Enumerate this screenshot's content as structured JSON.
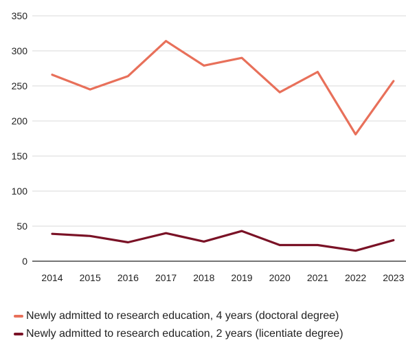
{
  "chart_data": {
    "type": "line",
    "title": "",
    "xlabel": "",
    "ylabel": "",
    "x": [
      "2014",
      "2015",
      "2016",
      "2017",
      "2018",
      "2019",
      "2020",
      "2021",
      "2022",
      "2023"
    ],
    "y_ticks": [
      "0",
      "50",
      "100",
      "150",
      "200",
      "250",
      "300",
      "350"
    ],
    "ylim": [
      0,
      350
    ],
    "grid": true,
    "legend_position": "bottom",
    "series": [
      {
        "name": "Newly admitted to research education, 4 years (doctoral degree)",
        "color": "#E8705A",
        "values": [
          266,
          245,
          264,
          314,
          279,
          290,
          241,
          270,
          181,
          257
        ]
      },
      {
        "name": "Newly admitted to research education, 2 years (licentiate degree)",
        "color": "#7A1226",
        "values": [
          39,
          36,
          27,
          40,
          28,
          43,
          23,
          23,
          15,
          30
        ]
      }
    ]
  }
}
